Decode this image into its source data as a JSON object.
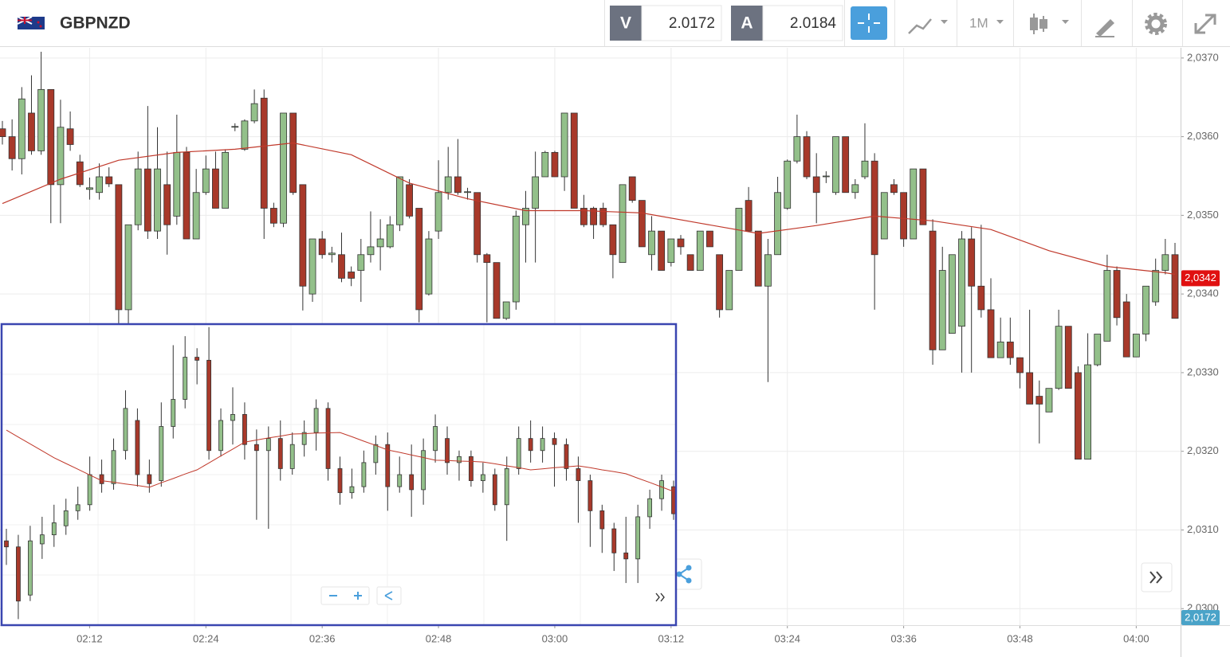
{
  "toolbar": {
    "symbol": "GBPNZD",
    "sell_label": "V",
    "sell_price": "2.0172",
    "buy_label": "A",
    "buy_price": "2.0184",
    "timeframe": "1M",
    "bid_tag": "2,0172"
  },
  "chart_data": [
    {
      "type": "candlestick",
      "x": [
        "02:03",
        "02:04",
        "02:05",
        "02:06",
        "02:07",
        "02:08",
        "02:09",
        "02:10",
        "02:11",
        "02:12",
        "02:13",
        "02:14",
        "02:15",
        "02:16",
        "02:17",
        "02:18",
        "02:19",
        "02:20",
        "02:21",
        "02:22",
        "02:23",
        "02:24",
        "02:25",
        "02:26",
        "02:27",
        "02:28",
        "02:29",
        "02:30",
        "02:31",
        "02:32",
        "02:33",
        "02:34",
        "02:35",
        "02:36",
        "02:37",
        "02:38",
        "02:39",
        "02:40",
        "02:41",
        "02:42",
        "02:43",
        "02:44",
        "02:45",
        "02:46",
        "02:47",
        "02:48",
        "02:49",
        "02:50",
        "02:51",
        "02:52",
        "02:53",
        "02:54",
        "02:55",
        "02:56",
        "02:57",
        "02:58",
        "02:59",
        "03:00",
        "03:01",
        "03:02",
        "03:03",
        "03:04",
        "03:05",
        "03:06",
        "03:07",
        "03:08",
        "03:09",
        "03:10",
        "03:11",
        "03:12",
        "03:13",
        "03:14",
        "03:15",
        "03:16",
        "03:17",
        "03:18",
        "03:19",
        "03:20",
        "03:21",
        "03:22",
        "03:23",
        "03:24",
        "03:25",
        "03:26",
        "03:27",
        "03:28",
        "03:29",
        "03:30",
        "03:31",
        "03:32",
        "03:33",
        "03:34",
        "03:35",
        "03:36",
        "03:37",
        "03:38",
        "03:39",
        "03:40",
        "03:41",
        "03:42",
        "03:43",
        "03:44",
        "03:45",
        "03:46",
        "03:47",
        "03:48",
        "03:49",
        "03:50",
        "03:51",
        "03:52",
        "03:53",
        "03:54",
        "03:55",
        "03:56",
        "03:57",
        "03:58",
        "03:59",
        "04:00",
        "04:01",
        "04:02",
        "04:03",
        "04:04"
      ],
      "open": [
        2.0361,
        2.036,
        2.03572,
        2.0363,
        2.03582,
        2.0366,
        2.03539,
        2.0361,
        2.03568,
        2.03533,
        2.03529,
        2.03549,
        2.03539,
        2.0338,
        2.03488,
        2.03559,
        2.0348,
        2.03539,
        2.03499,
        2.0358,
        2.0347,
        2.03529,
        2.03559,
        2.03509,
        2.03612,
        2.03584,
        2.0362,
        2.03649,
        2.03509,
        2.0349,
        2.0363,
        2.03539,
        2.034,
        2.0347,
        2.0345,
        2.0345,
        2.03428,
        2.0343,
        2.0345,
        2.0346,
        2.0346,
        2.03488,
        2.03539,
        2.03509,
        2.034,
        2.0348,
        2.03529,
        2.03549,
        2.03529,
        2.03529,
        2.0345,
        2.0344,
        2.03369,
        2.0339,
        2.03488,
        2.03509,
        2.03549,
        2.0358,
        2.03549,
        2.0363,
        2.03509,
        2.03509,
        2.03509,
        2.03488,
        2.0344,
        2.03549,
        2.03519,
        2.0345,
        2.0348,
        2.0344,
        2.0347,
        2.0345,
        2.0343,
        2.0348,
        2.0345,
        2.0338,
        2.0343,
        2.03519,
        2.0348,
        2.0341,
        2.0345,
        2.03509,
        2.03569,
        2.036,
        2.03549,
        2.03549,
        2.03529,
        2.036,
        2.03529,
        2.03549,
        2.03569,
        2.0347,
        2.03539,
        2.03529,
        2.0347,
        2.03559,
        2.0348,
        2.03329,
        2.0335,
        2.03359,
        2.0347,
        2.0341,
        2.0338,
        2.03319,
        2.03339,
        2.03319,
        2.033,
        2.0327,
        2.0325,
        2.0328,
        2.03359,
        2.033,
        2.0319,
        2.0331,
        2.0334,
        2.0343,
        2.0339,
        2.0332,
        2.03349,
        2.0339,
        2.0343,
        2.0345
      ],
      "high": [
        2.0362,
        2.03622,
        2.03663,
        2.03678,
        2.03708,
        2.0366,
        2.03647,
        2.03632,
        2.03577,
        2.03548,
        2.03566,
        2.03561,
        2.03539,
        2.03488,
        2.03581,
        2.03639,
        2.03612,
        2.03581,
        2.03628,
        2.03587,
        2.03559,
        2.03576,
        2.03581,
        2.03584,
        2.03617,
        2.03622,
        2.0366,
        2.0366,
        2.03516,
        2.0363,
        2.0363,
        2.03539,
        2.0347,
        2.0348,
        2.0346,
        2.03478,
        2.03435,
        2.0347,
        2.03505,
        2.03495,
        2.03499,
        2.03549,
        2.03546,
        2.03509,
        2.0348,
        2.0357,
        2.03587,
        2.03597,
        2.03535,
        2.03529,
        2.03452,
        2.0344,
        2.0339,
        2.03506,
        2.03531,
        2.03581,
        2.03582,
        2.03582,
        2.0363,
        2.0363,
        2.03526,
        2.03511,
        2.03516,
        2.03488,
        2.03539,
        2.03549,
        2.03519,
        2.03499,
        2.0348,
        2.0347,
        2.03475,
        2.0345,
        2.0348,
        2.0348,
        2.0345,
        2.0343,
        2.03509,
        2.03536,
        2.0348,
        2.0347,
        2.03549,
        2.03571,
        2.03628,
        2.03607,
        2.03579,
        2.03556,
        2.036,
        2.036,
        2.03546,
        2.03617,
        2.03579,
        2.03529,
        2.03546,
        2.03529,
        2.03559,
        2.03559,
        2.03495,
        2.0346,
        2.0345,
        2.0348,
        2.03485,
        2.03488,
        2.0342,
        2.0337,
        2.0337,
        2.03319,
        2.0338,
        2.0329,
        2.0328,
        2.0338,
        2.03359,
        2.03308,
        2.0335,
        2.03349,
        2.0345,
        2.03435,
        2.034,
        2.03349,
        2.0341,
        2.03445,
        2.0347,
        2.03465
      ],
      "low": [
        2.0359,
        2.03557,
        2.03552,
        2.03577,
        2.03577,
        2.0349,
        2.0349,
        2.03582,
        2.03536,
        2.0352,
        2.0352,
        2.03536,
        2.03329,
        2.03329,
        2.03481,
        2.0347,
        2.0347,
        2.0345,
        2.03488,
        2.0347,
        2.0347,
        2.03526,
        2.03509,
        2.03509,
        2.03607,
        2.03582,
        2.03617,
        2.0347,
        2.03485,
        2.03485,
        2.03526,
        2.03379,
        2.0339,
        2.03445,
        2.0344,
        2.03415,
        2.0341,
        2.0339,
        2.0344,
        2.0343,
        2.03458,
        2.0348,
        2.03496,
        2.03364,
        2.03398,
        2.0347,
        2.0352,
        2.03526,
        2.0352,
        2.0344,
        2.03364,
        2.03369,
        2.03367,
        2.0338,
        2.0344,
        2.0344,
        2.03549,
        2.03549,
        2.03531,
        2.03509,
        2.03485,
        2.0347,
        2.03485,
        2.0342,
        2.0344,
        2.03516,
        2.0346,
        2.0343,
        2.0343,
        2.03435,
        2.0345,
        2.0343,
        2.0343,
        2.0346,
        2.0337,
        2.0338,
        2.0343,
        2.0348,
        2.0341,
        2.03288,
        2.0345,
        2.03507,
        2.03566,
        2.03546,
        2.0349,
        2.03541,
        2.03526,
        2.03529,
        2.03521,
        2.03546,
        2.0338,
        2.0347,
        2.03526,
        2.0346,
        2.0347,
        2.03488,
        2.0331,
        2.03329,
        2.0335,
        2.033,
        2.033,
        2.0337,
        2.03319,
        2.03319,
        2.0331,
        2.0328,
        2.0326,
        2.0321,
        2.0325,
        2.03278,
        2.0328,
        2.0319,
        2.0319,
        2.03308,
        2.0334,
        2.0336,
        2.0332,
        2.0332,
        2.0334,
        2.03385,
        2.03425,
        2.03369
      ],
      "close": [
        2.036,
        2.03572,
        2.03648,
        2.03582,
        2.0366,
        2.03539,
        2.03612,
        2.0359,
        2.03539,
        2.03535,
        2.03549,
        2.0354,
        2.0338,
        2.03488,
        2.03559,
        2.0348,
        2.03559,
        2.03488,
        2.0358,
        2.0347,
        2.03529,
        2.03559,
        2.03509,
        2.0358,
        2.03613,
        2.0362,
        2.03642,
        2.03509,
        2.0349,
        2.0363,
        2.03529,
        2.0341,
        2.0347,
        2.0345,
        2.03452,
        2.0342,
        2.0342,
        2.0345,
        2.0346,
        2.0347,
        2.03488,
        2.03549,
        2.03499,
        2.0338,
        2.0347,
        2.03529,
        2.03549,
        2.03529,
        2.0353,
        2.0345,
        2.0344,
        2.03369,
        2.0339,
        2.03499,
        2.03509,
        2.03549,
        2.0358,
        2.03549,
        2.0363,
        2.03509,
        2.03488,
        2.03488,
        2.03488,
        2.0345,
        2.03539,
        2.03519,
        2.0346,
        2.0348,
        2.0343,
        2.0347,
        2.0346,
        2.0343,
        2.0348,
        2.0346,
        2.0338,
        2.0343,
        2.03509,
        2.0348,
        2.0341,
        2.0345,
        2.03529,
        2.03569,
        2.036,
        2.03549,
        2.03529,
        2.0355,
        2.036,
        2.03529,
        2.03539,
        2.03569,
        2.0345,
        2.03529,
        2.03529,
        2.0347,
        2.03559,
        2.03488,
        2.03329,
        2.0343,
        2.0345,
        2.0347,
        2.0341,
        2.0338,
        2.03319,
        2.03339,
        2.03319,
        2.033,
        2.0326,
        2.0326,
        2.0328,
        2.03359,
        2.0328,
        2.0319,
        2.0331,
        2.03349,
        2.0343,
        2.0337,
        2.0332,
        2.03349,
        2.0341,
        2.0343,
        2.0345,
        2.03369
      ],
      "up_color": "#93c08a",
      "down_color": "#a8392a",
      "ma": {
        "color": "#c0392b",
        "x": [
          "02:03",
          "02:09",
          "02:15",
          "02:21",
          "02:27",
          "02:33",
          "02:39",
          "02:45",
          "02:51",
          "02:57",
          "03:03",
          "03:09",
          "03:15",
          "03:21",
          "03:27",
          "03:33",
          "03:39",
          "03:45",
          "03:51",
          "03:57",
          "04:03",
          "04:04"
        ],
        "values": [
          2.03515,
          2.03546,
          2.0357,
          2.0358,
          2.03584,
          2.03592,
          2.03577,
          2.03541,
          2.03521,
          2.03506,
          2.03506,
          2.03503,
          2.0349,
          2.03477,
          2.03487,
          2.03499,
          2.03493,
          2.03482,
          2.03455,
          2.03435,
          2.03427,
          2.03425
        ]
      },
      "ylim": [
        2.02979,
        2.03713
      ],
      "yticks": [
        {
          "value": 2.03,
          "label": "2,0300"
        },
        {
          "value": 2.031,
          "label": "2,0310"
        },
        {
          "value": 2.032,
          "label": "2,0320"
        },
        {
          "value": 2.033,
          "label": "2,0330"
        },
        {
          "value": 2.034,
          "label": "2,0340"
        },
        {
          "value": 2.035,
          "label": "2,0350"
        },
        {
          "value": 2.036,
          "label": "2,0360"
        },
        {
          "value": 2.037,
          "label": "2,0370"
        }
      ],
      "xticks": [
        "02:12",
        "02:24",
        "02:36",
        "02:48",
        "03:00",
        "03:12",
        "03:24",
        "03:36",
        "03:48",
        "04:00"
      ],
      "grid": true,
      "last_price_tag": {
        "value": 2.0342,
        "label": "2,0342",
        "color": "#e01010"
      }
    },
    {
      "type": "candlestick",
      "open": [
        28,
        26,
        10,
        27,
        30,
        33,
        38,
        40,
        50,
        47,
        58,
        68,
        50,
        48,
        66,
        75,
        89,
        88,
        58,
        68,
        70,
        60,
        58,
        62,
        52,
        60,
        64,
        72,
        52,
        44,
        46,
        54,
        60,
        46,
        50,
        45,
        58,
        62,
        54,
        56,
        48,
        50,
        40,
        52,
        62,
        58,
        62,
        60,
        52,
        48,
        38,
        32,
        24,
        22,
        36,
        42,
        46
      ],
      "high": [
        32,
        30,
        33,
        36,
        40,
        42,
        46,
        56,
        55,
        62,
        78,
        72,
        55,
        74,
        93,
        96,
        92,
        99,
        72,
        79,
        74,
        65,
        66,
        68,
        64,
        68,
        75,
        74,
        56,
        52,
        58,
        63,
        64,
        56,
        60,
        62,
        70,
        66,
        58,
        58,
        54,
        52,
        56,
        66,
        68,
        66,
        64,
        62,
        56,
        50,
        40,
        34,
        36,
        40,
        45,
        50,
        48
      ],
      "low": [
        20,
        2,
        8,
        22,
        26,
        30,
        35,
        38,
        44,
        45,
        55,
        46,
        44,
        46,
        62,
        72,
        80,
        55,
        56,
        60,
        55,
        35,
        32,
        48,
        50,
        56,
        58,
        48,
        40,
        42,
        44,
        50,
        38,
        44,
        36,
        40,
        54,
        50,
        48,
        46,
        44,
        38,
        28,
        50,
        54,
        54,
        46,
        48,
        34,
        26,
        24,
        18,
        14,
        14,
        32,
        38,
        35
      ],
      "close": [
        26,
        8,
        28,
        30,
        34,
        38,
        40,
        50,
        47,
        58,
        72,
        50,
        47,
        66,
        75,
        89,
        88,
        58,
        68,
        70,
        60,
        58,
        62,
        52,
        60,
        64,
        72,
        52,
        44,
        46,
        54,
        60,
        46,
        50,
        45,
        58,
        66,
        54,
        56,
        48,
        50,
        40,
        52,
        62,
        58,
        62,
        60,
        52,
        48,
        38,
        32,
        24,
        22,
        36,
        42,
        48,
        37
      ],
      "ma_values": [
        64.8,
        62.5,
        60.2,
        57.9,
        55.6,
        53.7,
        51.8,
        49.9,
        48,
        47.5,
        46.9,
        46.4,
        45.8,
        47.3,
        48.7,
        50.2,
        51.6,
        53.9,
        56.2,
        58.5,
        60.8,
        61.5,
        62.2,
        62.8,
        63.5,
        63.6,
        63.8,
        63.9,
        64,
        62.6,
        61.1,
        59.7,
        58.2,
        57.4,
        56.5,
        55.7,
        54.8,
        54.7,
        54.5,
        54.4,
        54.2,
        53.6,
        52.9,
        52.3,
        51.6,
        51.9,
        52.3,
        52.6,
        52.9,
        52.3,
        51.6,
        51,
        50.3,
        48.8,
        47.4,
        45.9,
        44.4
      ],
      "ma_color": "#c0392b",
      "up_color": "#93c08a",
      "down_color": "#a8392a",
      "ylim": [
        0,
        100
      ],
      "frame_color": "#3a46b0"
    }
  ]
}
